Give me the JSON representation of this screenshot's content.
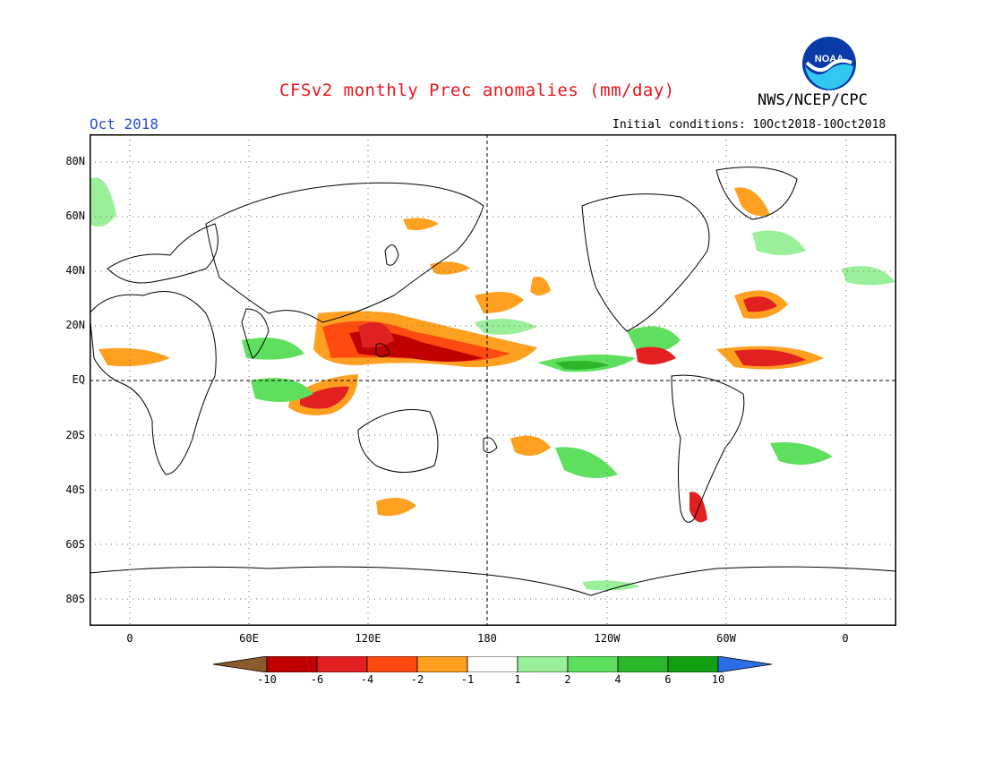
{
  "header": {
    "title": "CFSv2 monthly Prec anomalies (mm/day)",
    "month": "Oct 2018",
    "initial_conditions": "Initial conditions: 10Oct2018-10Oct2018",
    "agency": "NWS/NCEP/CPC",
    "logo_icon": "noaa-logo-icon",
    "logo_text": "NOAA"
  },
  "map": {
    "y_labels": [
      "80N",
      "60N",
      "40N",
      "20N",
      "EQ",
      "20S",
      "40S",
      "60S",
      "80S"
    ],
    "x_labels": [
      "0",
      "60E",
      "120E",
      "180",
      "120W",
      "60W",
      "0"
    ]
  },
  "colorbar": {
    "labels": [
      "-10",
      "-6",
      "-4",
      "-2",
      "-1",
      "1",
      "2",
      "4",
      "6",
      "10"
    ],
    "colors": [
      "#8b5a2b",
      "#c00000",
      "#e32020",
      "#ff4a10",
      "#ffa020",
      "#ffffff",
      "#9af09a",
      "#5ee05e",
      "#2ab82a",
      "#12a012",
      "#2a6ee8"
    ]
  }
}
